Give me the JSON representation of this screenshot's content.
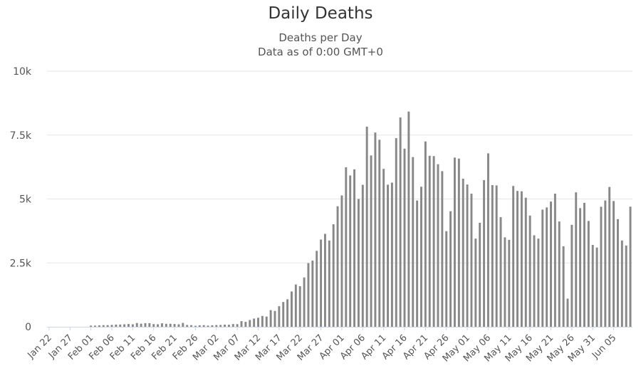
{
  "chart_data": {
    "type": "bar",
    "title": "Daily Deaths",
    "subtitles": [
      "Deaths per Day",
      "Data as of 0:00 GMT+0"
    ],
    "xlabel": "",
    "ylabel": "",
    "ylim": [
      0,
      10000
    ],
    "yticks": [
      0,
      2500,
      5000,
      7500,
      10000
    ],
    "ytick_labels": [
      "0",
      "2.5k",
      "5k",
      "7.5k",
      "10k"
    ],
    "xtick_labels": [
      "Jan 22",
      "Jan 27",
      "Feb 01",
      "Feb 06",
      "Feb 11",
      "Feb 16",
      "Feb 21",
      "Feb 26",
      "Mar 02",
      "Mar 07",
      "Mar 12",
      "Mar 17",
      "Mar 22",
      "Mar 27",
      "Apr 01",
      "Apr 06",
      "Apr 11",
      "Apr 16",
      "Apr 21",
      "Apr 26",
      "May 01",
      "May 06",
      "May 11",
      "May 16",
      "May 21",
      "May 26",
      "May 31",
      "Jun 05"
    ],
    "tick_every": 5,
    "grid": true,
    "bar_color": "#888888",
    "categories": [
      "Jan 22",
      "Jan 23",
      "Jan 24",
      "Jan 25",
      "Jan 26",
      "Jan 27",
      "Jan 28",
      "Jan 29",
      "Jan 30",
      "Jan 31",
      "Feb 01",
      "Feb 02",
      "Feb 03",
      "Feb 04",
      "Feb 05",
      "Feb 06",
      "Feb 07",
      "Feb 08",
      "Feb 09",
      "Feb 10",
      "Feb 11",
      "Feb 12",
      "Feb 13",
      "Feb 14",
      "Feb 15",
      "Feb 16",
      "Feb 17",
      "Feb 18",
      "Feb 19",
      "Feb 20",
      "Feb 21",
      "Feb 22",
      "Feb 23",
      "Feb 24",
      "Feb 25",
      "Feb 26",
      "Feb 27",
      "Feb 28",
      "Feb 29",
      "Mar 01",
      "Mar 02",
      "Mar 03",
      "Mar 04",
      "Mar 05",
      "Mar 06",
      "Mar 07",
      "Mar 08",
      "Mar 09",
      "Mar 10",
      "Mar 11",
      "Mar 12",
      "Mar 13",
      "Mar 14",
      "Mar 15",
      "Mar 16",
      "Mar 17",
      "Mar 18",
      "Mar 19",
      "Mar 20",
      "Mar 21",
      "Mar 22",
      "Mar 23",
      "Mar 24",
      "Mar 25",
      "Mar 26",
      "Mar 27",
      "Mar 28",
      "Mar 29",
      "Mar 30",
      "Mar 31",
      "Apr 01",
      "Apr 02",
      "Apr 03",
      "Apr 04",
      "Apr 05",
      "Apr 06",
      "Apr 07",
      "Apr 08",
      "Apr 09",
      "Apr 10",
      "Apr 11",
      "Apr 12",
      "Apr 13",
      "Apr 14",
      "Apr 15",
      "Apr 16",
      "Apr 17",
      "Apr 18",
      "Apr 19",
      "Apr 20",
      "Apr 21",
      "Apr 22",
      "Apr 23",
      "Apr 24",
      "Apr 25",
      "Apr 26",
      "Apr 27",
      "Apr 28",
      "Apr 29",
      "Apr 30",
      "May 01",
      "May 02",
      "May 03",
      "May 04",
      "May 05",
      "May 06",
      "May 07",
      "May 08",
      "May 09",
      "May 10",
      "May 11",
      "May 12",
      "May 13",
      "May 14",
      "May 15",
      "May 16",
      "May 17",
      "May 18",
      "May 19",
      "May 20",
      "May 21",
      "May 22",
      "May 23",
      "May 24",
      "May 25",
      "May 26",
      "May 27",
      "May 28",
      "May 29",
      "May 30",
      "May 31",
      "Jun 01",
      "Jun 02",
      "Jun 03",
      "Jun 04",
      "Jun 05",
      "Jun 06",
      "Jun 07",
      "Jun 08",
      "Jun 09"
    ],
    "values": [
      0,
      0,
      0,
      0,
      0,
      0,
      0,
      0,
      0,
      0,
      46,
      45,
      57,
      64,
      65,
      73,
      86,
      89,
      97,
      108,
      97,
      146,
      121,
      143,
      142,
      105,
      98,
      136,
      114,
      118,
      109,
      97,
      150,
      71,
      64,
      37,
      58,
      64,
      47,
      58,
      67,
      72,
      84,
      80,
      107,
      103,
      221,
      193,
      265,
      321,
      353,
      423,
      400,
      652,
      620,
      805,
      970,
      1076,
      1381,
      1655,
      1587,
      1929,
      2491,
      2590,
      2971,
      3411,
      3634,
      3375,
      4011,
      4716,
      5140,
      6240,
      5920,
      6160,
      5001,
      5555,
      7831,
      6704,
      7600,
      7317,
      6180,
      5560,
      5640,
      7380,
      8190,
      6970,
      8420,
      6640,
      4940,
      5480,
      7250,
      6690,
      6678,
      6360,
      6090,
      3740,
      4520,
      6620,
      6580,
      5794,
      5567,
      5208,
      3450,
      4070,
      5736,
      6786,
      5542,
      5532,
      4288,
      3500,
      3400,
      5510,
      5314,
      5300,
      5050,
      4350,
      3580,
      3450,
      4584,
      4670,
      4900,
      5210,
      4120,
      3150,
      1100,
      3990,
      5260,
      4643,
      4850,
      4140,
      3202,
      3100,
      4696,
      4942,
      5470,
      4920,
      4212,
      3376,
      3180,
      4700
    ]
  }
}
